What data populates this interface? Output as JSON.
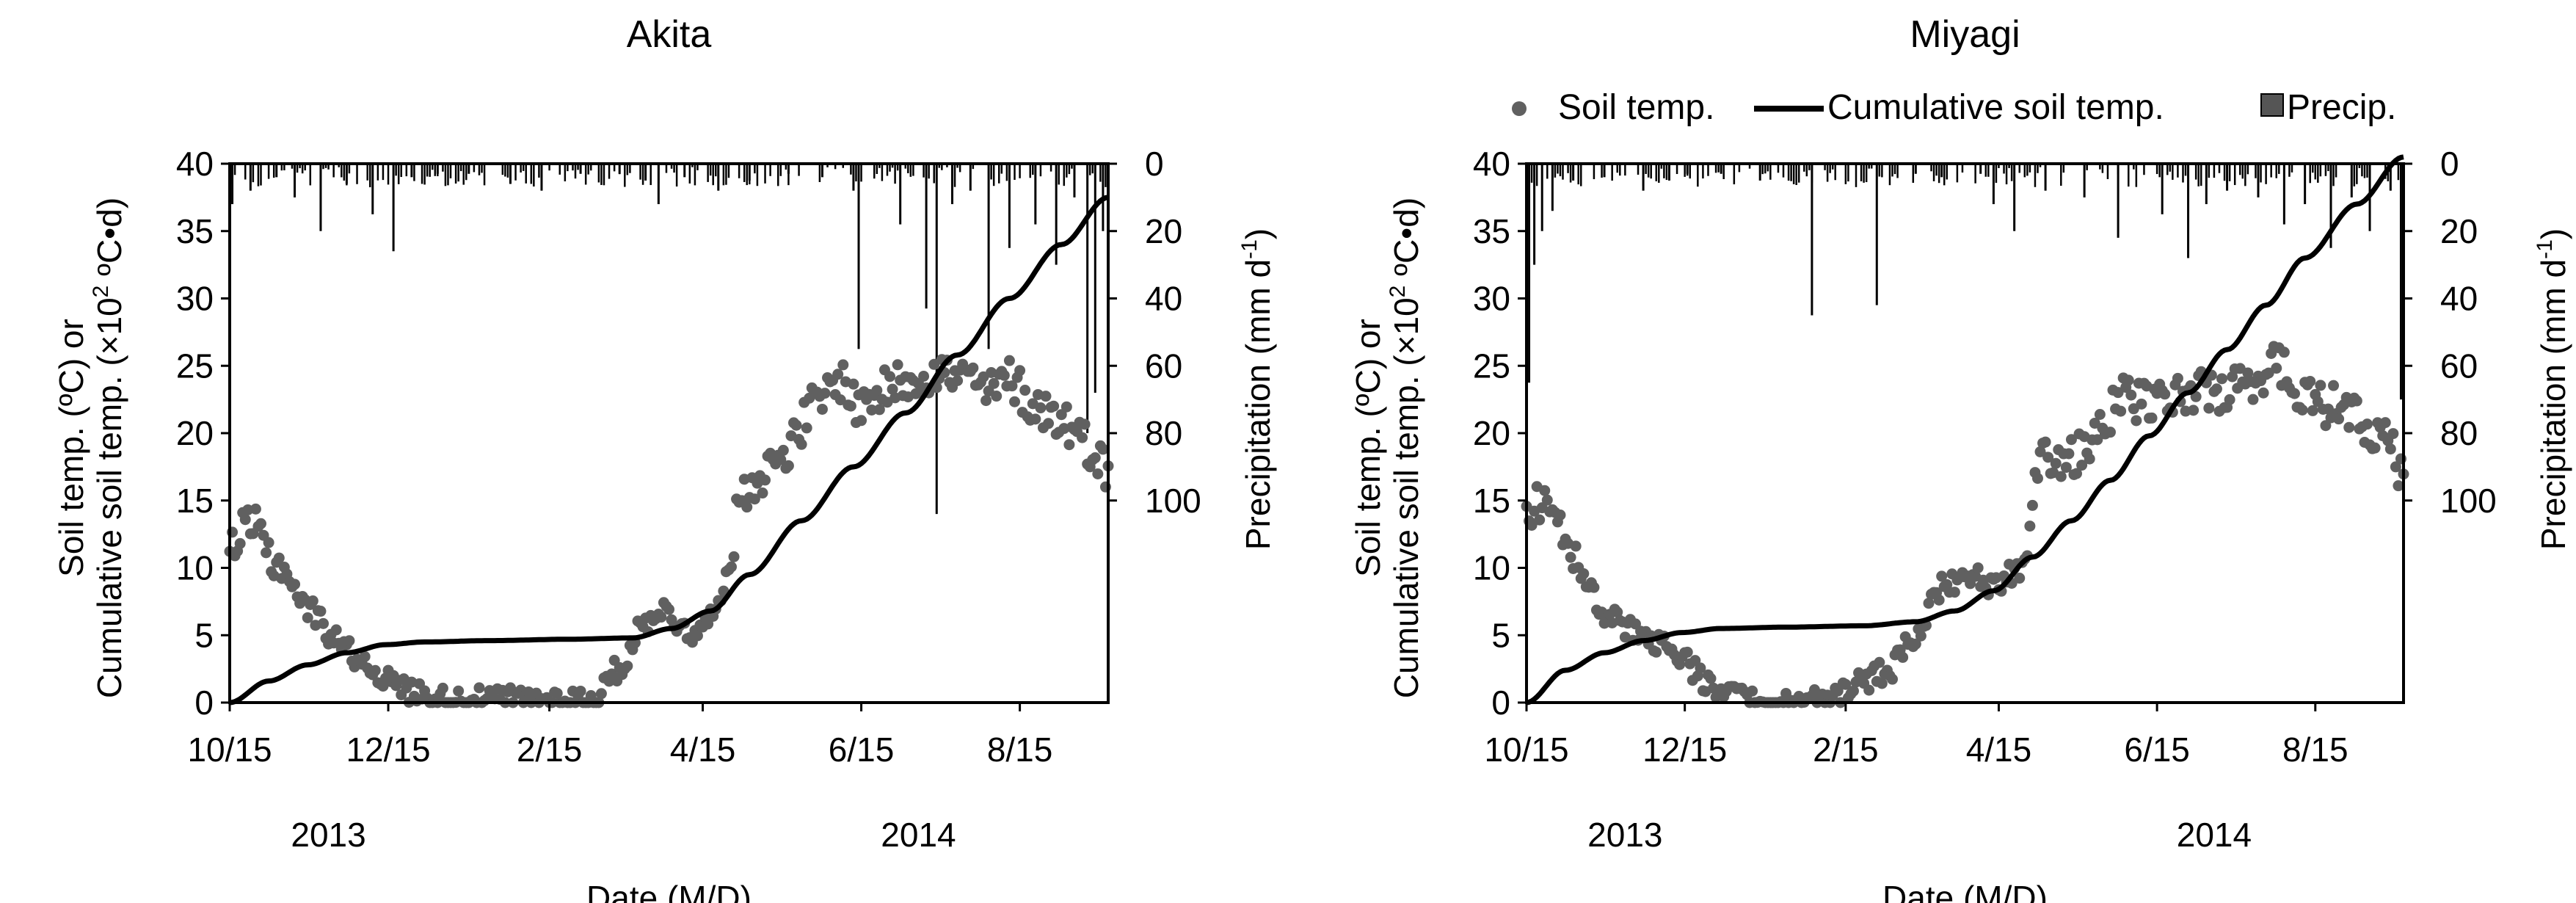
{
  "figure": {
    "xlabel": "Date (M/D)",
    "y_left_label_line1": "Soil temp. (ºC) or",
    "y_left_label_line2": "Cumulative  soil temp. (×10",
    "y_left_label_sup": "2",
    "y_left_label_end": " ºC•d)",
    "y_right_label": "Precipitation (mm d",
    "y_right_label_sup": "-1",
    "y_right_label_end": ")",
    "legend": {
      "soil_temp": "Soil temp.",
      "cumulative": "Cumulative soil temp.",
      "precip": "Precip."
    },
    "colors": {
      "points": "#606060",
      "line": "#000000",
      "bars": "#000000",
      "frame": "#000000"
    }
  },
  "chart_data": [
    {
      "type": "scatter+line+bar",
      "title": "Akita",
      "x_tick_labels": [
        "10/15",
        "12/15",
        "2/15",
        "4/15",
        "6/15",
        "8/15"
      ],
      "x_ticks_day": [
        0,
        61,
        123,
        182,
        243,
        304
      ],
      "year_labels": [
        "2013",
        "2014"
      ],
      "year_label_day": [
        38,
        265
      ],
      "xlim_day": [
        0,
        338
      ],
      "ylim_left": [
        0,
        40
      ],
      "y_left_ticks": [
        0,
        5,
        10,
        15,
        20,
        25,
        30,
        35,
        40
      ],
      "ylim_right": [
        0,
        160
      ],
      "y_right_ticks": [
        0,
        20,
        40,
        60,
        80,
        100
      ],
      "soil_temp_anchors": [
        [
          0,
          11.5
        ],
        [
          8,
          13
        ],
        [
          20,
          10
        ],
        [
          30,
          7
        ],
        [
          40,
          5
        ],
        [
          48,
          3.5
        ],
        [
          55,
          2.5
        ],
        [
          62,
          1.5
        ],
        [
          70,
          0.8
        ],
        [
          80,
          0.3
        ],
        [
          95,
          0.2
        ],
        [
          110,
          0.3
        ],
        [
          125,
          0.2
        ],
        [
          140,
          0.3
        ],
        [
          150,
          2.5
        ],
        [
          158,
          5.5
        ],
        [
          165,
          7
        ],
        [
          172,
          6
        ],
        [
          180,
          5
        ],
        [
          190,
          8.5
        ],
        [
          198,
          16
        ],
        [
          205,
          17
        ],
        [
          215,
          19
        ],
        [
          225,
          22
        ],
        [
          235,
          24
        ],
        [
          242,
          22
        ],
        [
          250,
          23
        ],
        [
          260,
          24
        ],
        [
          270,
          24.5
        ],
        [
          285,
          24
        ],
        [
          292,
          23
        ],
        [
          300,
          24
        ],
        [
          310,
          22
        ],
        [
          320,
          21
        ],
        [
          332,
          19
        ],
        [
          338,
          17
        ]
      ],
      "cumulative_anchors": [
        [
          0,
          0
        ],
        [
          15,
          1.6
        ],
        [
          30,
          2.8
        ],
        [
          45,
          3.7
        ],
        [
          60,
          4.3
        ],
        [
          75,
          4.5
        ],
        [
          100,
          4.6
        ],
        [
          130,
          4.7
        ],
        [
          155,
          4.8
        ],
        [
          170,
          5.5
        ],
        [
          185,
          6.8
        ],
        [
          200,
          9.5
        ],
        [
          220,
          13.5
        ],
        [
          240,
          17.5
        ],
        [
          260,
          21.5
        ],
        [
          280,
          25.8
        ],
        [
          300,
          30
        ],
        [
          320,
          34
        ],
        [
          338,
          37.5
        ]
      ],
      "precip_events": [
        [
          1,
          12
        ],
        [
          8,
          8
        ],
        [
          18,
          4
        ],
        [
          25,
          10
        ],
        [
          35,
          20
        ],
        [
          45,
          6
        ],
        [
          55,
          15
        ],
        [
          63,
          26
        ],
        [
          70,
          4
        ],
        [
          80,
          3
        ],
        [
          92,
          3
        ],
        [
          108,
          6
        ],
        [
          120,
          8
        ],
        [
          135,
          3
        ],
        [
          150,
          3
        ],
        [
          160,
          5
        ],
        [
          165,
          12
        ],
        [
          175,
          4
        ],
        [
          188,
          8
        ],
        [
          200,
          5
        ],
        [
          215,
          3
        ],
        [
          228,
          4
        ],
        [
          240,
          8
        ],
        [
          242,
          55
        ],
        [
          258,
          18
        ],
        [
          268,
          43
        ],
        [
          272,
          104
        ],
        [
          278,
          12
        ],
        [
          285,
          8
        ],
        [
          292,
          55
        ],
        [
          300,
          25
        ],
        [
          310,
          18
        ],
        [
          318,
          30
        ],
        [
          325,
          10
        ],
        [
          330,
          80
        ],
        [
          333,
          68
        ],
        [
          336,
          20
        ]
      ]
    },
    {
      "type": "scatter+line+bar",
      "title": "Miyagi",
      "x_tick_labels": [
        "10/15",
        "12/15",
        "2/15",
        "4/15",
        "6/15",
        "8/15"
      ],
      "x_ticks_day": [
        0,
        61,
        123,
        182,
        243,
        304
      ],
      "year_labels": [
        "2013",
        "2014"
      ],
      "year_label_day": [
        38,
        265
      ],
      "xlim_day": [
        0,
        338
      ],
      "ylim_left": [
        0,
        40
      ],
      "y_left_ticks": [
        0,
        5,
        10,
        15,
        20,
        25,
        30,
        35,
        40
      ],
      "ylim_right": [
        0,
        160
      ],
      "y_right_ticks": [
        0,
        20,
        40,
        60,
        80,
        100
      ],
      "soil_temp_anchors": [
        [
          0,
          14.5
        ],
        [
          8,
          15
        ],
        [
          15,
          12
        ],
        [
          22,
          9
        ],
        [
          30,
          6.5
        ],
        [
          40,
          5.5
        ],
        [
          50,
          4.5
        ],
        [
          60,
          3
        ],
        [
          70,
          1.5
        ],
        [
          80,
          0.5
        ],
        [
          88,
          0
        ],
        [
          100,
          0
        ],
        [
          110,
          0.5
        ],
        [
          120,
          0.5
        ],
        [
          130,
          1.5
        ],
        [
          140,
          2.5
        ],
        [
          150,
          5
        ],
        [
          160,
          8.5
        ],
        [
          170,
          9.5
        ],
        [
          180,
          8.5
        ],
        [
          190,
          10
        ],
        [
          200,
          18.5
        ],
        [
          210,
          18
        ],
        [
          220,
          20
        ],
        [
          230,
          23
        ],
        [
          240,
          22
        ],
        [
          250,
          23
        ],
        [
          260,
          23
        ],
        [
          270,
          23
        ],
        [
          280,
          24
        ],
        [
          290,
          25
        ],
        [
          300,
          23
        ],
        [
          310,
          22
        ],
        [
          320,
          21
        ],
        [
          330,
          20
        ],
        [
          338,
          17
        ]
      ],
      "cumulative_anchors": [
        [
          0,
          0
        ],
        [
          15,
          2.4
        ],
        [
          30,
          3.7
        ],
        [
          45,
          4.6
        ],
        [
          60,
          5.2
        ],
        [
          75,
          5.5
        ],
        [
          100,
          5.6
        ],
        [
          130,
          5.7
        ],
        [
          150,
          6.0
        ],
        [
          165,
          6.8
        ],
        [
          180,
          8.3
        ],
        [
          195,
          10.8
        ],
        [
          210,
          13.5
        ],
        [
          225,
          16.5
        ],
        [
          240,
          19.8
        ],
        [
          255,
          23
        ],
        [
          270,
          26.2
        ],
        [
          285,
          29.5
        ],
        [
          300,
          33
        ],
        [
          320,
          37
        ],
        [
          338,
          40.5
        ]
      ],
      "precip_events": [
        [
          1,
          65
        ],
        [
          3,
          30
        ],
        [
          6,
          20
        ],
        [
          10,
          14
        ],
        [
          18,
          5
        ],
        [
          30,
          4
        ],
        [
          45,
          8
        ],
        [
          55,
          5
        ],
        [
          62,
          3
        ],
        [
          75,
          3
        ],
        [
          90,
          5
        ],
        [
          110,
          45
        ],
        [
          135,
          42
        ],
        [
          150,
          3
        ],
        [
          160,
          4
        ],
        [
          175,
          3
        ],
        [
          180,
          12
        ],
        [
          188,
          20
        ],
        [
          200,
          8
        ],
        [
          215,
          10
        ],
        [
          228,
          22
        ],
        [
          245,
          15
        ],
        [
          255,
          28
        ],
        [
          262,
          12
        ],
        [
          270,
          8
        ],
        [
          282,
          10
        ],
        [
          292,
          18
        ],
        [
          300,
          12
        ],
        [
          310,
          25
        ],
        [
          318,
          10
        ],
        [
          325,
          20
        ],
        [
          333,
          8
        ],
        [
          337,
          70
        ]
      ]
    }
  ]
}
